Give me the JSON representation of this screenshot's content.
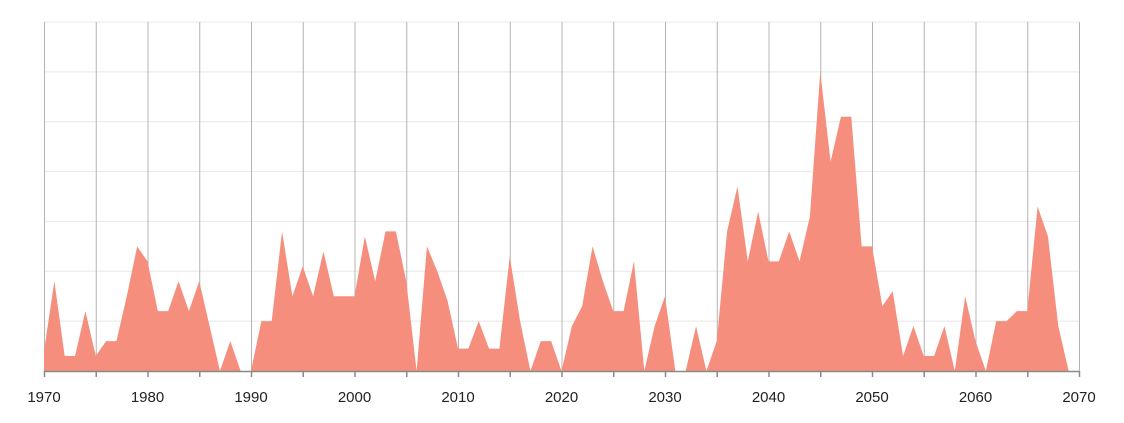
{
  "chart_data": {
    "type": "area",
    "title": "",
    "xlabel": "",
    "ylabel": "",
    "xlim": [
      1970,
      2070
    ],
    "ylim": [
      0,
      70
    ],
    "x_ticks": [
      "1970",
      "1980",
      "1990",
      "2000",
      "2010",
      "2020",
      "2030",
      "2040",
      "2050",
      "2060",
      "2070"
    ],
    "y_ticks_labeled": false,
    "grid": {
      "vertical": true,
      "horizontal": true
    },
    "colors": {
      "fill": "#f68e7d",
      "vgrid": "#b4b4b4",
      "hgrid": "#e8e8e8",
      "axis": "#8a8a8a"
    },
    "series": [
      {
        "x_start": 1970,
        "values": [
          4,
          18,
          3,
          3,
          12,
          3,
          6,
          6,
          15,
          25,
          22,
          12,
          12,
          18,
          12,
          18,
          9,
          0,
          6,
          0,
          0,
          10,
          10,
          28,
          15,
          21,
          15,
          24,
          15,
          15,
          15,
          27,
          18,
          28,
          28,
          18,
          0,
          25,
          20,
          14,
          4.5,
          4.5,
          10,
          4.5,
          4.5,
          23,
          10,
          0,
          6,
          6,
          0,
          9,
          13,
          25,
          18,
          12,
          12,
          22,
          0,
          9,
          15,
          0,
          0,
          9,
          0,
          6,
          28,
          37,
          22,
          32,
          22,
          22,
          28,
          22,
          31,
          60,
          42,
          51,
          51,
          25,
          25,
          13,
          16,
          3,
          9,
          3,
          3,
          9,
          0,
          15,
          6,
          0,
          10,
          10,
          12,
          12,
          33,
          27,
          9,
          0
        ]
      }
    ]
  }
}
